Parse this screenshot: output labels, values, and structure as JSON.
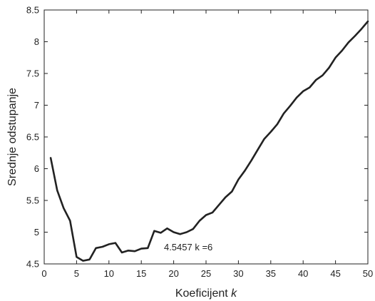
{
  "chart_data": {
    "type": "line",
    "title": "",
    "xlabel_text": "Koeficijent ",
    "xlabel_var": "k",
    "ylabel": "Srednje odstupanje",
    "xlim": [
      0,
      50
    ],
    "ylim": [
      4.5,
      8.5
    ],
    "x_ticks": [
      "0",
      "5",
      "10",
      "15",
      "20",
      "25",
      "30",
      "35",
      "40",
      "45",
      "50"
    ],
    "y_ticks": [
      "4.5",
      "5",
      "5.5",
      "6",
      "6.5",
      "7",
      "7.5",
      "8",
      "8.5"
    ],
    "grid": false,
    "legend": "none",
    "line_color": "#222222",
    "annotation": {
      "text": "4.5457 k =6",
      "x": 18.5,
      "y": 4.76
    },
    "series": [
      {
        "x": [
          1,
          2,
          3,
          4,
          5,
          6,
          7,
          8,
          9,
          10,
          11,
          12,
          13,
          14,
          15,
          16,
          17,
          18,
          19,
          20,
          21,
          22,
          23,
          24,
          25,
          26,
          27,
          28,
          29,
          30,
          31,
          32,
          33,
          34,
          35,
          36,
          37,
          38,
          39,
          40,
          41,
          42,
          43,
          44,
          45,
          46,
          47,
          48,
          49,
          50
        ],
        "values": [
          6.17,
          5.66,
          5.38,
          5.18,
          4.61,
          4.55,
          4.57,
          4.75,
          4.77,
          4.81,
          4.83,
          4.68,
          4.71,
          4.7,
          4.74,
          4.75,
          5.02,
          4.99,
          5.06,
          5.0,
          4.97,
          5.0,
          5.05,
          5.18,
          5.27,
          5.31,
          5.43,
          5.55,
          5.64,
          5.83,
          5.97,
          6.13,
          6.3,
          6.47,
          6.58,
          6.7,
          6.87,
          6.99,
          7.12,
          7.22,
          7.28,
          7.4,
          7.47,
          7.59,
          7.75,
          7.86,
          7.99,
          8.09,
          8.2,
          8.32
        ]
      }
    ]
  }
}
